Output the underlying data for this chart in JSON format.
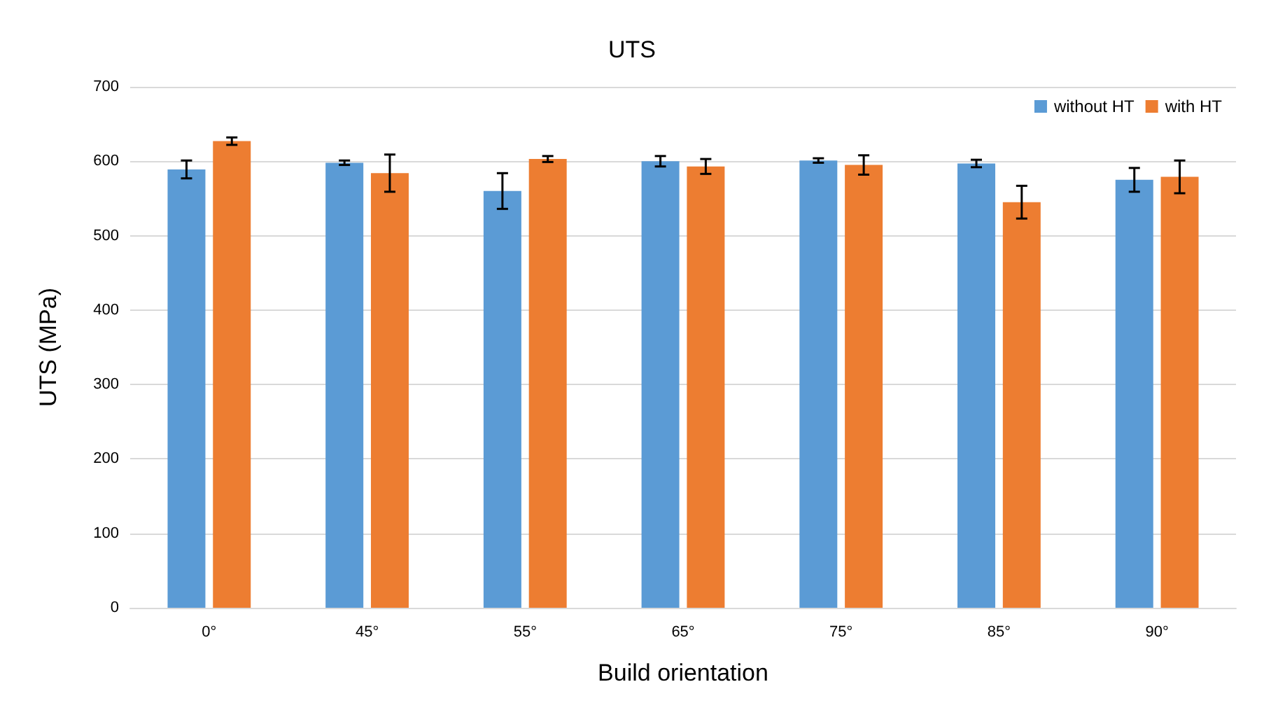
{
  "chart_data": {
    "type": "bar",
    "title": "UTS",
    "xlabel": "Build orientation",
    "ylabel": "UTS (MPa)",
    "categories": [
      "0°",
      "45°",
      "55°",
      "65°",
      "75°",
      "85°",
      "90°"
    ],
    "series": [
      {
        "name": "without HT",
        "color": "#5b9bd5",
        "values": [
          589,
          598,
          560,
          600,
          601,
          597,
          575
        ],
        "errors": [
          12,
          3,
          24,
          7,
          3,
          5,
          16
        ]
      },
      {
        "name": "with HT",
        "color": "#ed7d31",
        "values": [
          627,
          584,
          603,
          593,
          595,
          545,
          579
        ],
        "errors": [
          5,
          25,
          4,
          10,
          13,
          22,
          22
        ]
      }
    ],
    "ylim": [
      0,
      700
    ],
    "yticks": [
      0,
      100,
      200,
      300,
      400,
      500,
      600,
      700
    ],
    "grid": "y",
    "legend": "top right"
  }
}
